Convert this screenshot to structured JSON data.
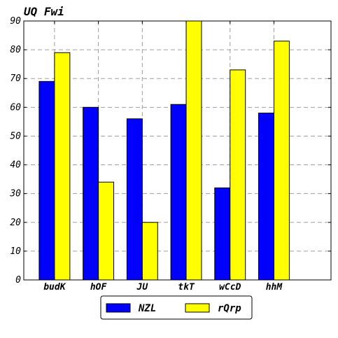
{
  "chart_data": {
    "type": "bar",
    "title": "UQ Fwi",
    "xlabel": "",
    "ylabel": "",
    "categories": [
      "budK",
      "hOF",
      "JU",
      "tkT",
      "wCcD",
      "hhM"
    ],
    "series": [
      {
        "name": "NZL",
        "color": "#0000ff",
        "values": [
          69,
          60,
          56,
          61,
          32,
          58
        ]
      },
      {
        "name": "rQrp",
        "color": "#ffff00",
        "values": [
          79,
          34,
          20,
          90,
          73,
          83
        ]
      }
    ],
    "ylim": [
      0,
      90
    ],
    "yticks": [
      0,
      10,
      20,
      30,
      40,
      50,
      60,
      70,
      80,
      90
    ],
    "grid": true,
    "legend_position": "bottom-center"
  }
}
